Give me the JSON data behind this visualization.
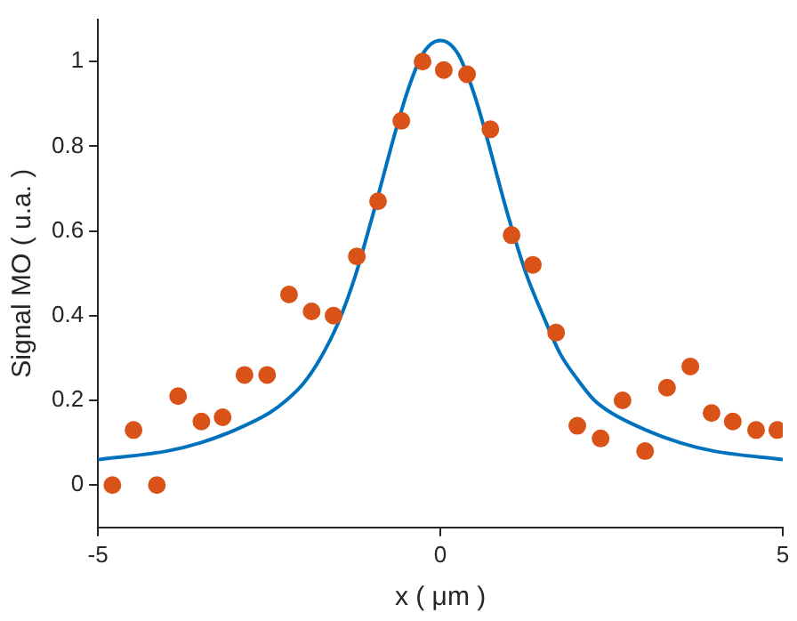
{
  "chart_data": {
    "type": "scatter",
    "xlabel": "x ( μm )",
    "ylabel": "Signal MO ( u.a. )",
    "xlim": [
      -5,
      5
    ],
    "xticks": [
      -5,
      0,
      5
    ],
    "ylim": [
      -0.1,
      1.1
    ],
    "yticks": [
      0,
      0.2,
      0.4,
      0.6,
      0.8,
      1
    ],
    "grid": false,
    "legend": false,
    "marker": "circle",
    "series": [
      {
        "color": "#d95319",
        "x": [
          -4.79,
          -4.48,
          -4.14,
          -3.83,
          -3.49,
          -3.18,
          -2.86,
          -2.53,
          -2.21,
          -1.88,
          -1.56,
          -1.22,
          -0.91,
          -0.57,
          -0.26,
          0.05,
          0.39,
          0.73,
          1.04,
          1.35,
          1.69,
          2.0,
          2.34,
          2.66,
          2.99,
          3.31,
          3.65,
          3.96,
          4.27,
          4.61,
          4.92
        ],
        "values": [
          0.0,
          0.13,
          0.0,
          0.21,
          0.15,
          0.16,
          0.26,
          0.26,
          0.45,
          0.41,
          0.4,
          0.54,
          0.67,
          0.86,
          1.0,
          0.98,
          0.97,
          0.84,
          0.59,
          0.52,
          0.36,
          0.14,
          0.11,
          0.2,
          0.08,
          0.23,
          0.28,
          0.17,
          0.15,
          0.13,
          0.13
        ]
      },
      {
        "type": "line",
        "color": "#0072bd",
        "marker": "none",
        "x": [
          -5,
          -4,
          -3.5,
          -3,
          -2.5,
          -2.25,
          -2,
          -1.75,
          -1.5,
          -1.25,
          -1,
          -0.5,
          -0.25,
          0,
          0.25,
          0.5,
          1,
          1.25,
          1.5,
          1.75,
          2,
          2.25,
          2.5,
          3,
          3.5,
          4,
          5
        ],
        "values": [
          0.06,
          0.08,
          0.1,
          0.13,
          0.17,
          0.2,
          0.24,
          0.3,
          0.38,
          0.49,
          0.63,
          0.92,
          1.02,
          1.05,
          1.02,
          0.92,
          0.63,
          0.5,
          0.4,
          0.31,
          0.25,
          0.2,
          0.17,
          0.13,
          0.1,
          0.08,
          0.06
        ]
      }
    ]
  }
}
